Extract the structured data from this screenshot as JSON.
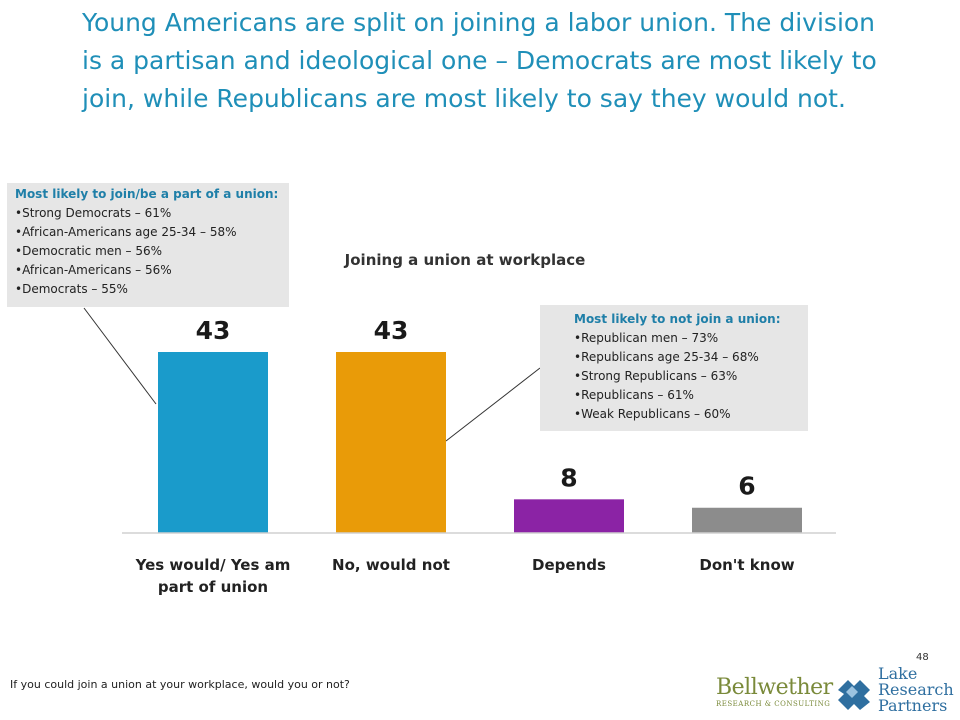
{
  "headline": "Young Americans are split on joining a labor union. The division is a partisan and ideological one – Democrats are most likely to join, while Republicans are most likely to say they would not.",
  "callout_join": {
    "title": "Most likely to join/be a part of a union:",
    "items": [
      "•Strong Democrats – 61%",
      "•African-Americans age 25-34 – 58%",
      "•Democratic men – 56%",
      "•African-Americans – 56%",
      "•Democrats – 55%"
    ]
  },
  "callout_not_join": {
    "title": "Most likely to not join a union:",
    "items": [
      "•Republican men – 73%",
      "•Republicans age 25-34 – 68%",
      "•Strong Republicans – 63%",
      "•Republicans – 61%",
      "•Weak Republicans – 60%"
    ]
  },
  "chart_data": {
    "type": "bar",
    "title": "Joining a union at workplace",
    "categories": [
      "Yes would/ Yes am part of union",
      "No, would not",
      "Depends",
      "Don't know"
    ],
    "category_lines": [
      [
        "Yes would/ Yes am",
        "part of union"
      ],
      [
        "No, would not"
      ],
      [
        "Depends"
      ],
      [
        "Don't know"
      ]
    ],
    "values": [
      43,
      43,
      8,
      6
    ],
    "colors": [
      "#1a9bcb",
      "#e99b08",
      "#8b23a5",
      "#8c8c8c"
    ],
    "ylim": [
      0,
      50
    ],
    "grid": false,
    "legend": "none"
  },
  "footnote": "If you could join a union at your workplace, would you or not?",
  "page_number": "48",
  "logos": {
    "bellwether_main": "Bellwether",
    "bellwether_sub": "RESEARCH & CONSULTING",
    "lake_lines": [
      "Lake",
      "Research",
      "Partners"
    ]
  }
}
